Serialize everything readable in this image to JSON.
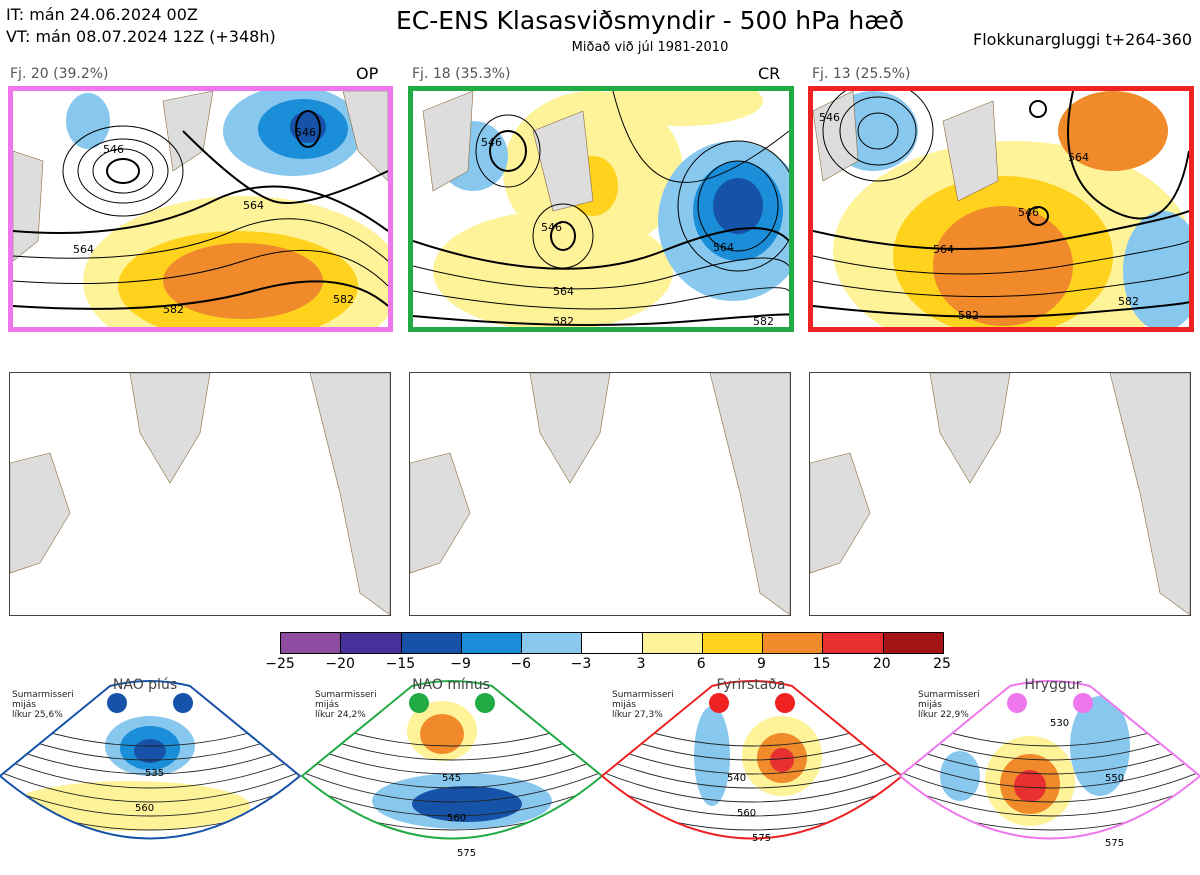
{
  "header": {
    "it_line": "IT: mán 24.06.2024 00Z",
    "vt_line": "VT: mán 08.07.2024 12Z  (+348h)",
    "title": "EC-ENS Klasasviðsmyndir - 500 hPa hæð",
    "subtitle": "Miðað við júl 1981-2010",
    "window": "Flokkunargluggi t+264-360"
  },
  "clusters": [
    {
      "label": "Fj. 20 (39.2%)",
      "tag": "OP",
      "border_color": "#ee77ee",
      "contour_labels": [
        "546",
        "546",
        "564",
        "564",
        "582",
        "582"
      ]
    },
    {
      "label": "Fj. 18 (35.3%)",
      "tag": "CR",
      "border_color": "#22aa44",
      "contour_labels": [
        "546",
        "546",
        "564",
        "564",
        "582",
        "582"
      ]
    },
    {
      "label": "Fj. 13 (25.5%)",
      "tag": "",
      "border_color": "#ee2222",
      "contour_labels": [
        "546",
        "546",
        "564",
        "564",
        "582",
        "582"
      ]
    }
  ],
  "colorbar": {
    "ticks": [
      "−25",
      "−20",
      "−15",
      "−9",
      "−6",
      "−3",
      "3",
      "6",
      "9",
      "15",
      "20",
      "25"
    ],
    "colors": [
      "#8e4da0",
      "#48309a",
      "#1552a8",
      "#1a8ed8",
      "#88c8ee",
      "#ffffff",
      "#fff39a",
      "#ffd21e",
      "#f08a2a",
      "#e83030",
      "#a51414"
    ]
  },
  "regimes": [
    {
      "title": "NAO plús",
      "text": [
        "Sumarmisseri",
        "mijás",
        "líkur 25,6%"
      ],
      "color": "#1552a8",
      "labels": [
        "535",
        "560"
      ]
    },
    {
      "title": "NAO mínus",
      "text": [
        "Sumarmisseri",
        "mijás",
        "líkur 24,2%"
      ],
      "color": "#22aa44",
      "labels": [
        "545",
        "560",
        "575"
      ]
    },
    {
      "title": "Fyrirstaða",
      "text": [
        "Sumarmisseri",
        "mijás",
        "líkur 27,3%"
      ],
      "color": "#ee2222",
      "labels": [
        "540",
        "560",
        "575"
      ]
    },
    {
      "title": "Hryggur",
      "text": [
        "Sumarmisseri",
        "mijás",
        "líkur 22,9%"
      ],
      "color": "#ee77ee",
      "labels": [
        "530",
        "550",
        "575"
      ]
    }
  ]
}
